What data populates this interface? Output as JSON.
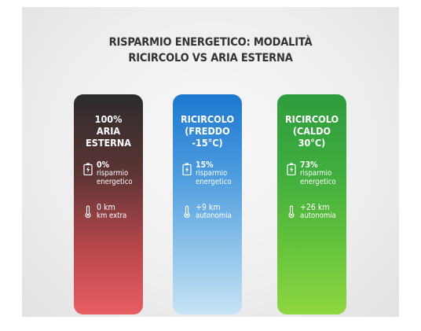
{
  "title": {
    "line1": "RISPARMIO ENERGETICO: MODALITÀ",
    "line2": "RICIRCOLO VS ARIA ESTERNA"
  },
  "cards": [
    {
      "heading": [
        "100%",
        "ARIA",
        "ESTERNA"
      ],
      "saving_value": "0%",
      "saving_label": [
        "risparmio",
        "energetico"
      ],
      "range_value": "0 km",
      "range_label": "km extra",
      "color_top": "#2c2c2c",
      "color_bottom": "#e85e62"
    },
    {
      "heading": [
        "RICIRCOLO",
        "(FREDDO",
        "-15°C)"
      ],
      "saving_value": "15%",
      "saving_label": [
        "risparmio",
        "energetico"
      ],
      "range_value": "+9 km",
      "range_label": "autonomia",
      "color_top": "#1d78cf",
      "color_bottom": "#c7e3f5"
    },
    {
      "heading": [
        "RICIRCOLO",
        "(CALDO",
        "30°C)"
      ],
      "saving_value": "73%",
      "saving_label": [
        "risparmio",
        "energetico"
      ],
      "range_value": "+26 km",
      "range_label": "autonomia",
      "color_top": "#2e9c3d",
      "color_bottom": "#8fd641"
    }
  ],
  "icons": {
    "saving": "battery-charging-icon",
    "range": "thermometer-icon"
  }
}
